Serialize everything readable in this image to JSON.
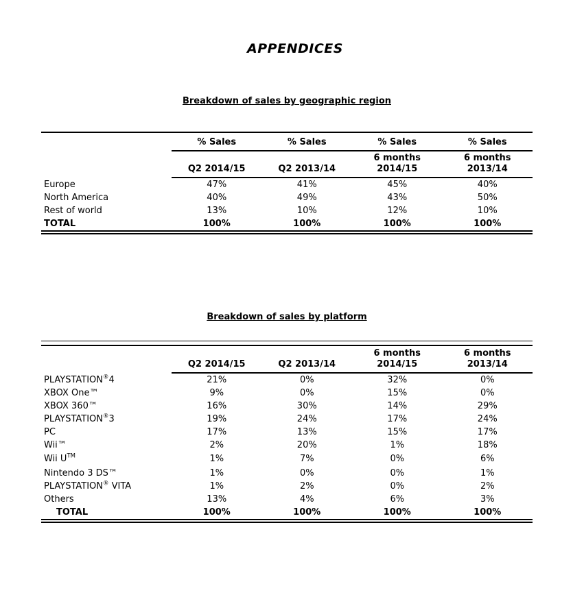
{
  "page": {
    "title": "APPENDICES"
  },
  "region_table": {
    "heading": "Breakdown of sales by geographic region",
    "top_headers": [
      "% Sales",
      "% Sales",
      "% Sales",
      "% Sales"
    ],
    "col_headers": [
      {
        "line1": "",
        "line2": "Q2 2014/15"
      },
      {
        "line1": "",
        "line2": "Q2 2013/14"
      },
      {
        "line1": "6 months",
        "line2": "2014/15"
      },
      {
        "line1": "6 months",
        "line2": "2013/14"
      }
    ],
    "rows": [
      {
        "label": "Europe",
        "values": [
          "47%",
          "41%",
          "45%",
          "40%"
        ]
      },
      {
        "label": "North America",
        "values": [
          "40%",
          "49%",
          "43%",
          "50%"
        ]
      },
      {
        "label": "Rest of world",
        "values": [
          "13%",
          "10%",
          "12%",
          "10%"
        ]
      }
    ],
    "total": {
      "label": "TOTAL",
      "values": [
        "100%",
        "100%",
        "100%",
        "100%"
      ]
    }
  },
  "platform_table": {
    "heading": "Breakdown of sales by platform",
    "col_headers": [
      {
        "line1": "",
        "line2": "Q2 2014/15"
      },
      {
        "line1": "",
        "line2": "Q2 2013/14"
      },
      {
        "line1": "6 months",
        "line2": "2014/15"
      },
      {
        "line1": "6 months",
        "line2": "2013/14"
      }
    ],
    "rows": [
      {
        "label": "PLAYSTATION",
        "sup": "®",
        "suffix": "4",
        "values": [
          "21%",
          "0%",
          "32%",
          "0%"
        ]
      },
      {
        "label": "XBOX One™",
        "sup": "",
        "suffix": "",
        "values": [
          "9%",
          "0%",
          "15%",
          "0%"
        ]
      },
      {
        "label": "XBOX 360™",
        "sup": "",
        "suffix": "",
        "values": [
          "16%",
          "30%",
          "14%",
          "29%"
        ]
      },
      {
        "label": "PLAYSTATION",
        "sup": "®",
        "suffix": "3",
        "values": [
          "19%",
          "24%",
          "17%",
          "24%"
        ]
      },
      {
        "label": "PC",
        "sup": "",
        "suffix": "",
        "values": [
          "17%",
          "13%",
          "15%",
          "17%"
        ]
      },
      {
        "label": "Wii™",
        "sup": "",
        "suffix": "",
        "values": [
          "2%",
          "20%",
          "1%",
          "18%"
        ]
      },
      {
        "label": "Wii U",
        "sup": "TM",
        "suffix": "",
        "values": [
          "1%",
          "7%",
          "0%",
          "6%"
        ]
      },
      {
        "label": "Nintendo 3 DS™",
        "sup": "",
        "suffix": "",
        "values": [
          "1%",
          "0%",
          "0%",
          "1%"
        ]
      },
      {
        "label": "PLAYSTATION",
        "sup": "®",
        "suffix": " VITA",
        "values": [
          "1%",
          "2%",
          "0%",
          "2%"
        ]
      },
      {
        "label": "Others",
        "sup": "",
        "suffix": "",
        "values": [
          "13%",
          "4%",
          "6%",
          "3%"
        ]
      }
    ],
    "total": {
      "label": "TOTAL",
      "values": [
        "100%",
        "100%",
        "100%",
        "100%"
      ]
    }
  }
}
